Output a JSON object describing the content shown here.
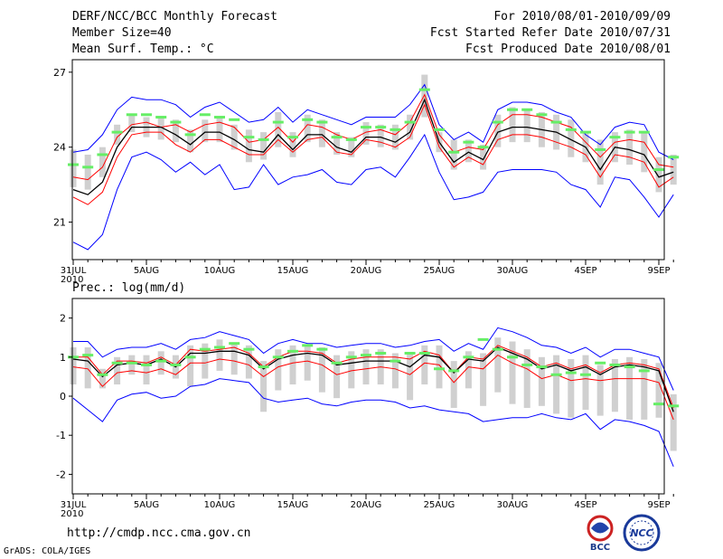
{
  "header": {
    "title": "DERF/NCC/BCC Monthly Forecast",
    "member_size": "Member Size=40",
    "variable1": "Mean Surf. Temp.: °C",
    "period": "For 2010/08/01-2010/09/09",
    "started": "Fcst Started Refer Date 2010/07/31",
    "produced": "Fcst Produced Date 2010/08/01",
    "variable2": "Prec.: log(mm/d)"
  },
  "footer": {
    "url": "http://cmdp.ncc.cma.gov.cn",
    "grads": "GrADS: COLA/IGES",
    "logo_bcc": "BCC",
    "logo_ncc": "NCC"
  },
  "chart_data": [
    {
      "type": "line",
      "title": "Mean Surf. Temp.: °C",
      "x_tick_positions": [
        0,
        5,
        10,
        15,
        20,
        25,
        30,
        35,
        40
      ],
      "x_tick_labels": [
        "31JUL",
        "5AUG",
        "10AUG",
        "15AUG",
        "20AUG",
        "25AUG",
        "30AUG",
        "4SEP",
        "9SEP"
      ],
      "x_year_label": "2010",
      "ylim": [
        19.5,
        27.5
      ],
      "y_ticks": [
        21,
        24,
        27
      ],
      "series": [
        {
          "name": "max",
          "color": "#0000ff",
          "values": [
            23.8,
            23.9,
            24.5,
            25.5,
            26.0,
            25.9,
            25.9,
            25.7,
            25.2,
            25.6,
            25.8,
            25.4,
            25.0,
            25.1,
            25.6,
            25.0,
            25.5,
            25.3,
            25.1,
            24.9,
            25.2,
            25.2,
            25.2,
            25.7,
            26.5,
            24.9,
            24.3,
            24.6,
            24.2,
            25.5,
            25.8,
            25.8,
            25.7,
            25.4,
            25.2,
            24.5,
            24.1,
            24.8,
            25.0,
            24.9,
            23.8,
            23.5
          ]
        },
        {
          "name": "p75",
          "color": "#ff0000",
          "values": [
            22.8,
            22.7,
            23.2,
            24.4,
            24.9,
            25.0,
            24.8,
            24.9,
            24.6,
            24.9,
            25.0,
            24.8,
            24.2,
            24.3,
            24.8,
            24.2,
            24.9,
            24.8,
            24.5,
            24.3,
            24.6,
            24.7,
            24.5,
            25.0,
            26.1,
            24.5,
            23.8,
            24.0,
            23.9,
            24.9,
            25.3,
            25.3,
            25.2,
            25.0,
            24.8,
            24.2,
            23.6,
            24.2,
            24.3,
            24.2,
            23.3,
            23.2
          ]
        },
        {
          "name": "mean",
          "color": "#000000",
          "values": [
            22.3,
            22.1,
            22.6,
            24.0,
            24.8,
            24.8,
            24.8,
            24.5,
            24.1,
            24.6,
            24.6,
            24.3,
            23.9,
            23.8,
            24.5,
            23.9,
            24.5,
            24.5,
            24.0,
            23.8,
            24.4,
            24.4,
            24.2,
            24.6,
            25.9,
            24.2,
            23.4,
            23.8,
            23.5,
            24.6,
            24.8,
            24.8,
            24.7,
            24.6,
            24.3,
            24.0,
            23.1,
            24.0,
            23.9,
            23.7,
            22.8,
            23.0
          ]
        },
        {
          "name": "p25",
          "color": "#ff0000",
          "values": [
            22.0,
            21.7,
            22.2,
            23.6,
            24.5,
            24.6,
            24.6,
            24.1,
            23.8,
            24.3,
            24.3,
            24.0,
            23.7,
            23.7,
            24.3,
            23.8,
            24.3,
            24.4,
            23.8,
            23.7,
            24.3,
            24.2,
            24.0,
            24.4,
            25.7,
            24.0,
            23.2,
            23.6,
            23.3,
            24.3,
            24.5,
            24.5,
            24.4,
            24.2,
            24.0,
            23.7,
            22.8,
            23.7,
            23.6,
            23.4,
            22.4,
            22.8
          ]
        },
        {
          "name": "min",
          "color": "#0000ff",
          "values": [
            20.2,
            19.9,
            20.5,
            22.3,
            23.6,
            23.8,
            23.5,
            23.0,
            23.4,
            22.9,
            23.3,
            22.3,
            22.4,
            23.3,
            22.5,
            22.8,
            22.9,
            23.1,
            22.6,
            22.5,
            23.1,
            23.2,
            22.8,
            23.6,
            24.5,
            23.0,
            21.9,
            22.0,
            22.2,
            23.0,
            23.1,
            23.1,
            23.1,
            23.0,
            22.5,
            22.3,
            21.6,
            22.8,
            22.7,
            22.0,
            21.2,
            22.1
          ]
        }
      ],
      "observation_color": "#66ee66",
      "observation": [
        23.3,
        23.2,
        23.7,
        24.6,
        25.3,
        25.3,
        25.2,
        25.0,
        24.5,
        25.3,
        25.2,
        25.1,
        24.4,
        24.3,
        25.0,
        24.4,
        25.1,
        25.0,
        24.4,
        24.3,
        24.8,
        24.8,
        24.7,
        25.0,
        26.3,
        24.7,
        23.8,
        24.2,
        24.0,
        25.0,
        25.5,
        25.5,
        25.3,
        25.0,
        24.7,
        24.6,
        23.9,
        24.4,
        24.6,
        24.6,
        23.1,
        23.6
      ],
      "spread_color": "#d0d0d0",
      "spread_low": [
        22.4,
        22.3,
        22.8,
        24.1,
        24.6,
        24.4,
        24.3,
        24.2,
        23.8,
        24.2,
        24.2,
        23.9,
        23.4,
        23.5,
        24.0,
        23.6,
        24.2,
        24.0,
        23.7,
        23.6,
        24.1,
        24.0,
        23.9,
        24.3,
        25.2,
        23.8,
        23.1,
        23.4,
        23.1,
        24.0,
        24.2,
        24.2,
        24.0,
        23.9,
        23.6,
        23.4,
        22.5,
        23.4,
        23.3,
        23.0,
        22.2,
        22.5
      ],
      "spread_high": [
        23.9,
        23.7,
        24.0,
        24.9,
        25.3,
        25.2,
        25.2,
        25.1,
        24.7,
        25.1,
        25.2,
        24.9,
        24.7,
        24.6,
        25.4,
        24.6,
        25.3,
        25.1,
        24.6,
        24.4,
        25.0,
        24.9,
        24.9,
        25.3,
        26.9,
        24.6,
        24.3,
        24.3,
        24.1,
        25.3,
        25.6,
        25.5,
        25.4,
        25.3,
        25.1,
        24.6,
        24.3,
        24.6,
        24.7,
        24.6,
        23.6,
        23.7
      ]
    },
    {
      "type": "line",
      "title": "Prec.: log(mm/d)",
      "x_tick_positions": [
        0,
        5,
        10,
        15,
        20,
        25,
        30,
        35,
        40
      ],
      "x_tick_labels": [
        "31JUL",
        "5AUG",
        "10AUG",
        "15AUG",
        "20AUG",
        "25AUG",
        "30AUG",
        "4SEP",
        "9SEP"
      ],
      "x_year_label": "2010",
      "ylim": [
        -2.5,
        2.5
      ],
      "y_ticks": [
        -2,
        -1,
        0,
        1,
        2
      ],
      "series": [
        {
          "name": "max",
          "color": "#0000ff",
          "values": [
            1.4,
            1.4,
            1.0,
            1.2,
            1.25,
            1.25,
            1.35,
            1.2,
            1.45,
            1.5,
            1.65,
            1.55,
            1.45,
            1.1,
            1.35,
            1.45,
            1.35,
            1.35,
            1.25,
            1.3,
            1.35,
            1.35,
            1.25,
            1.3,
            1.4,
            1.45,
            1.15,
            1.35,
            1.2,
            1.75,
            1.65,
            1.5,
            1.3,
            1.25,
            1.1,
            1.25,
            1.0,
            1.2,
            1.2,
            1.1,
            1.0,
            0.15
          ]
        },
        {
          "name": "p75",
          "color": "#ff0000",
          "values": [
            1.0,
            1.0,
            0.55,
            0.9,
            0.9,
            0.85,
            1.0,
            0.8,
            1.2,
            1.15,
            1.2,
            1.25,
            1.1,
            0.75,
            1.0,
            1.15,
            1.15,
            1.1,
            0.85,
            0.95,
            1.0,
            1.0,
            1.0,
            0.95,
            1.15,
            1.05,
            0.6,
            1.0,
            0.95,
            1.3,
            1.15,
            1.0,
            0.75,
            0.85,
            0.7,
            0.8,
            0.6,
            0.8,
            0.85,
            0.8,
            0.7,
            -0.3
          ]
        },
        {
          "name": "mean",
          "color": "#000000",
          "values": [
            0.95,
            0.9,
            0.5,
            0.8,
            0.85,
            0.8,
            0.95,
            0.75,
            1.1,
            1.1,
            1.15,
            1.15,
            1.05,
            0.7,
            0.95,
            1.05,
            1.1,
            1.05,
            0.8,
            0.85,
            0.9,
            0.9,
            0.9,
            0.75,
            1.05,
            1.0,
            0.6,
            0.95,
            0.9,
            1.25,
            1.1,
            0.95,
            0.7,
            0.8,
            0.65,
            0.75,
            0.55,
            0.75,
            0.8,
            0.75,
            0.65,
            -0.4
          ]
        },
        {
          "name": "p25",
          "color": "#ff0000",
          "values": [
            0.75,
            0.7,
            0.25,
            0.6,
            0.65,
            0.6,
            0.7,
            0.55,
            0.85,
            0.85,
            0.95,
            0.9,
            0.8,
            0.5,
            0.75,
            0.85,
            0.9,
            0.8,
            0.55,
            0.65,
            0.7,
            0.75,
            0.7,
            0.55,
            0.85,
            0.8,
            0.35,
            0.75,
            0.7,
            1.05,
            0.85,
            0.7,
            0.45,
            0.55,
            0.4,
            0.45,
            0.4,
            0.45,
            0.45,
            0.45,
            0.35,
            -0.6
          ]
        },
        {
          "name": "min",
          "color": "#0000ff",
          "values": [
            -0.05,
            -0.35,
            -0.65,
            -0.1,
            0.05,
            0.1,
            -0.05,
            0.0,
            0.25,
            0.3,
            0.45,
            0.4,
            0.35,
            -0.05,
            -0.15,
            -0.1,
            -0.05,
            -0.2,
            -0.25,
            -0.15,
            -0.1,
            -0.1,
            -0.15,
            -0.3,
            -0.25,
            -0.35,
            -0.4,
            -0.45,
            -0.65,
            -0.6,
            -0.55,
            -0.55,
            -0.45,
            -0.55,
            -0.6,
            -0.45,
            -0.85,
            -0.6,
            -0.65,
            -0.75,
            -0.9,
            -1.8
          ]
        }
      ],
      "observation_color": "#66ee66",
      "observation": [
        1.0,
        1.05,
        0.55,
        0.85,
        0.85,
        0.8,
        0.9,
        0.8,
        1.0,
        1.2,
        1.25,
        1.35,
        1.2,
        0.75,
        1.0,
        1.15,
        1.3,
        1.2,
        0.85,
        1.0,
        1.05,
        1.1,
        0.9,
        1.1,
        1.1,
        0.7,
        0.65,
        1.0,
        1.45,
        1.2,
        1.0,
        0.8,
        0.75,
        0.55,
        0.6,
        0.55,
        0.85,
        0.8,
        0.75,
        0.65,
        -0.2,
        -0.25
      ],
      "spread_color": "#d0d0d0",
      "spread_low": [
        0.3,
        0.2,
        0.2,
        0.3,
        0.55,
        0.3,
        0.55,
        0.45,
        0.25,
        0.45,
        0.65,
        0.55,
        0.45,
        -0.4,
        0.15,
        0.3,
        0.4,
        0.1,
        -0.05,
        0.2,
        0.3,
        0.3,
        0.2,
        -0.1,
        0.3,
        0.2,
        -0.3,
        0.2,
        -0.25,
        0.1,
        -0.2,
        -0.3,
        -0.25,
        -0.45,
        -0.55,
        -0.35,
        -0.5,
        -0.4,
        -0.6,
        -0.6,
        -0.55,
        -1.4
      ],
      "spread_high": [
        1.25,
        1.25,
        0.7,
        1.0,
        1.05,
        1.05,
        1.15,
        1.05,
        1.3,
        1.35,
        1.45,
        1.35,
        1.3,
        0.9,
        1.2,
        1.3,
        1.3,
        1.25,
        1.05,
        1.15,
        1.2,
        1.2,
        1.1,
        1.1,
        1.3,
        1.3,
        0.9,
        1.15,
        1.1,
        1.5,
        1.4,
        1.2,
        1.0,
        1.05,
        0.95,
        1.05,
        0.8,
        0.95,
        1.0,
        0.95,
        0.85,
        0.05
      ]
    }
  ]
}
